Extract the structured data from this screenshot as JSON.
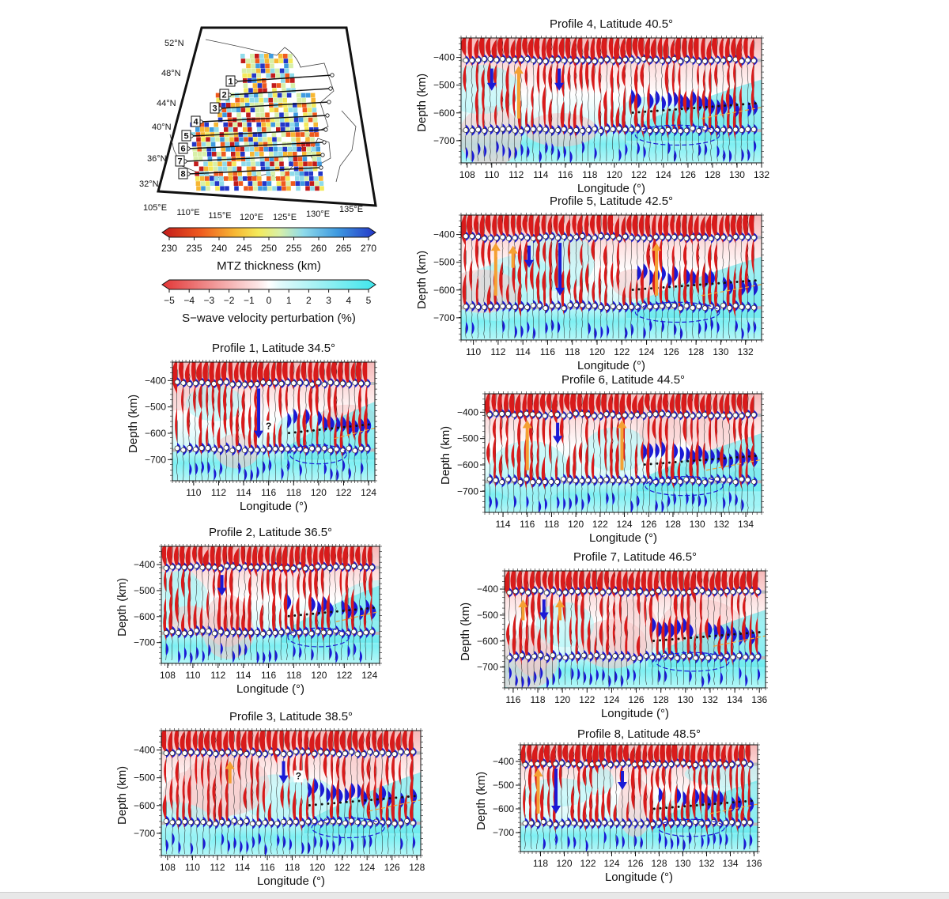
{
  "map": {
    "lat_labels": [
      "52°N",
      "48°N",
      "44°N",
      "40°N",
      "36°N",
      "32°N"
    ],
    "lon_labels": [
      "105°E",
      "110°E",
      "115°E",
      "120°E",
      "125°E",
      "130°E",
      "135°E"
    ],
    "profile_numbers": [
      "8",
      "7",
      "6",
      "5",
      "4",
      "3",
      "2",
      "1"
    ]
  },
  "colorbars": {
    "mtz": {
      "ticks": [
        "230",
        "235",
        "240",
        "245",
        "250",
        "255",
        "260",
        "265",
        "270"
      ],
      "label": "MTZ thickness (km)"
    },
    "vs": {
      "ticks": [
        "−5",
        "−4",
        "−3",
        "−2",
        "−1",
        "0",
        "1",
        "2",
        "3",
        "4",
        "5"
      ],
      "label": "S−wave velocity perturbation (%)"
    }
  },
  "profiles": [
    {
      "id": "p1",
      "title": "Profile 1, Latitude 34.5°",
      "lon_ticks": [
        "110",
        "112",
        "114",
        "116",
        "118",
        "120",
        "122",
        "124"
      ],
      "lon_range": [
        108.3,
        124.5
      ],
      "depth_ticks": [
        "−400",
        "−500",
        "−600",
        "−700"
      ],
      "ylabel": "Depth (km)",
      "xlabel": "Longitude (°)",
      "question_mark": "?"
    },
    {
      "id": "p2",
      "title": "Profile 2, Latitude 36.5°",
      "lon_ticks": [
        "108",
        "110",
        "112",
        "114",
        "116",
        "118",
        "120",
        "122",
        "124"
      ],
      "lon_range": [
        107.5,
        124.8
      ],
      "depth_ticks": [
        "−400",
        "−500",
        "−600",
        "−700"
      ],
      "ylabel": "Depth (km)",
      "xlabel": "Longitude (°)",
      "question_mark": ""
    },
    {
      "id": "p3",
      "title": "Profile 3, Latitude 38.5°",
      "lon_ticks": [
        "108",
        "110",
        "112",
        "114",
        "116",
        "118",
        "120",
        "122",
        "124",
        "126",
        "128"
      ],
      "lon_range": [
        107.5,
        128.3
      ],
      "depth_ticks": [
        "−400",
        "−500",
        "−600",
        "−700"
      ],
      "ylabel": "Depth (km)",
      "xlabel": "Longitude (°)",
      "question_mark": "?"
    },
    {
      "id": "p4",
      "title": "Profile 4, Latitude 40.5°",
      "lon_ticks": [
        "108",
        "110",
        "112",
        "114",
        "116",
        "118",
        "120",
        "122",
        "124",
        "126",
        "128",
        "130",
        "132"
      ],
      "lon_range": [
        107.5,
        132.0
      ],
      "depth_ticks": [
        "−400",
        "−500",
        "−600",
        "−700"
      ],
      "ylabel": "Depth (km)",
      "xlabel": "Longitude (°)",
      "question_mark": ""
    },
    {
      "id": "p5",
      "title": "Profile 5, Latitude 42.5°",
      "lon_ticks": [
        "110",
        "112",
        "114",
        "116",
        "118",
        "120",
        "122",
        "124",
        "126",
        "128",
        "130",
        "132"
      ],
      "lon_range": [
        109.0,
        133.3
      ],
      "depth_ticks": [
        "−400",
        "−500",
        "−600",
        "−700"
      ],
      "ylabel": "Depth (km)",
      "xlabel": "Longitude (°)",
      "question_mark": ""
    },
    {
      "id": "p6",
      "title": "Profile 6, Latitude 44.5°",
      "lon_ticks": [
        "114",
        "116",
        "118",
        "120",
        "122",
        "124",
        "126",
        "128",
        "130",
        "132",
        "134"
      ],
      "lon_range": [
        112.5,
        135.3
      ],
      "depth_ticks": [
        "−400",
        "−500",
        "−600",
        "−700"
      ],
      "ylabel": "Depth (km)",
      "xlabel": "Longitude (°)",
      "question_mark": ""
    },
    {
      "id": "p7",
      "title": "Profile 7, Latitude 46.5°",
      "lon_ticks": [
        "116",
        "118",
        "120",
        "122",
        "124",
        "126",
        "128",
        "130",
        "132",
        "134",
        "136"
      ],
      "lon_range": [
        115.3,
        136.5
      ],
      "depth_ticks": [
        "−400",
        "−500",
        "−600",
        "−700"
      ],
      "ylabel": "Depth (km)",
      "xlabel": "Longitude (°)",
      "question_mark": ""
    },
    {
      "id": "p8",
      "title": "Profile 8, Latitude 48.5°",
      "lon_ticks": [
        "118",
        "120",
        "122",
        "124",
        "126",
        "128",
        "130",
        "132",
        "134",
        "136"
      ],
      "lon_range": [
        116.3,
        136.3
      ],
      "depth_ticks": [
        "−400",
        "−500",
        "−600",
        "−700"
      ],
      "ylabel": "Depth (km)",
      "xlabel": "Longitude (°)",
      "question_mark": ""
    }
  ],
  "colors": {
    "red": "#d81b1b",
    "blue": "#1a1ad6",
    "orange": "#f5a032",
    "cyan": "#5ce8ee",
    "pink": "#f2a9a9"
  }
}
